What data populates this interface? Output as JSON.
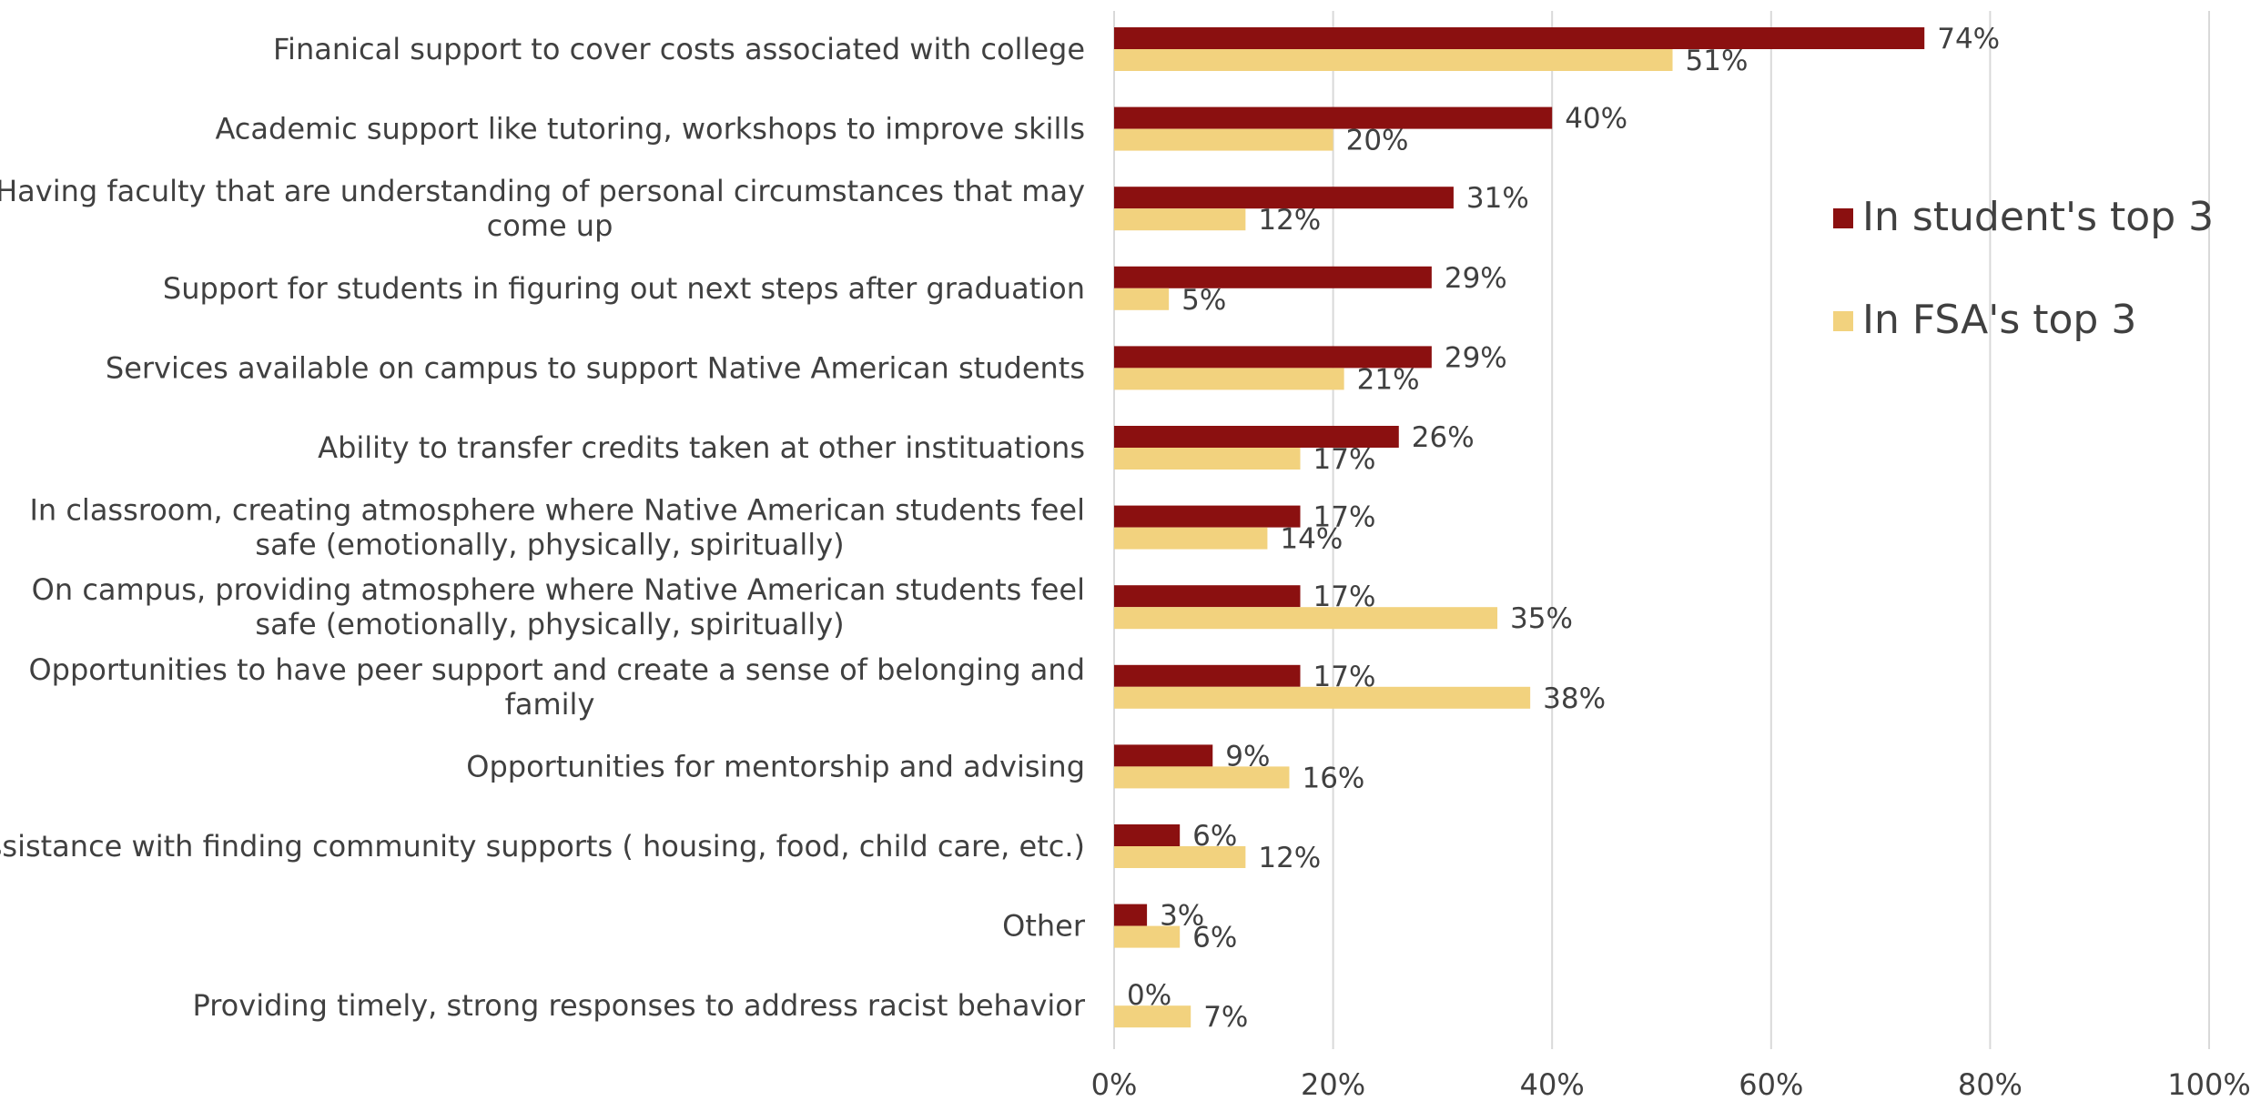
{
  "chart_data": {
    "type": "bar",
    "orientation": "horizontal",
    "categories": [
      [
        "Finanical support to cover costs associated with college"
      ],
      [
        "Academic support like tutoring, workshops to improve skills"
      ],
      [
        "Having faculty that are understanding of personal circumstances that may",
        "come up"
      ],
      [
        "Support for students in figuring out next steps after graduation"
      ],
      [
        "Services available on campus to support Native American students"
      ],
      [
        "Ability to transfer credits taken at other instituations"
      ],
      [
        "In classroom, creating atmosphere where Native American students feel",
        "safe (emotionally, physically, spiritually)"
      ],
      [
        "On campus, providing atmosphere where Native American students feel",
        "safe (emotionally, physically, spiritually)"
      ],
      [
        "Opportunities to have peer support and create a sense of belonging and",
        "family"
      ],
      [
        "Opportunities for mentorship and advising"
      ],
      [
        "Assistance with finding community supports ( housing, food, child care, etc.)"
      ],
      [
        "Other"
      ],
      [
        "Providing timely, strong responses to address racist behavior"
      ]
    ],
    "series": [
      {
        "name": "In student's top 3",
        "color": "#8b1010",
        "values": [
          74,
          40,
          31,
          29,
          29,
          26,
          17,
          17,
          17,
          9,
          6,
          3,
          0
        ],
        "labels": [
          "74%",
          "40%",
          "31%",
          "29%",
          "29%",
          "26%",
          "17%",
          "17%",
          "17%",
          "9%",
          "6%",
          "3%",
          "0%"
        ]
      },
      {
        "name": "In FSA's top 3",
        "color": "#f2d27e",
        "values": [
          51,
          20,
          12,
          5,
          21,
          17,
          14,
          35,
          38,
          16,
          12,
          6,
          7
        ],
        "labels": [
          "51%",
          "20%",
          "12%",
          "5%",
          "21%",
          "17%",
          "14%",
          "35%",
          "38%",
          "16%",
          "12%",
          "6%",
          "7%"
        ]
      }
    ],
    "xlim": [
      0,
      100
    ],
    "ticks": [
      0,
      20,
      40,
      60,
      80,
      100
    ],
    "tick_labels": [
      "0%",
      "20%",
      "40%",
      "60%",
      "80%",
      "100%"
    ],
    "grid": true,
    "legend_position": "right",
    "title": "",
    "xlabel": "",
    "ylabel": ""
  }
}
